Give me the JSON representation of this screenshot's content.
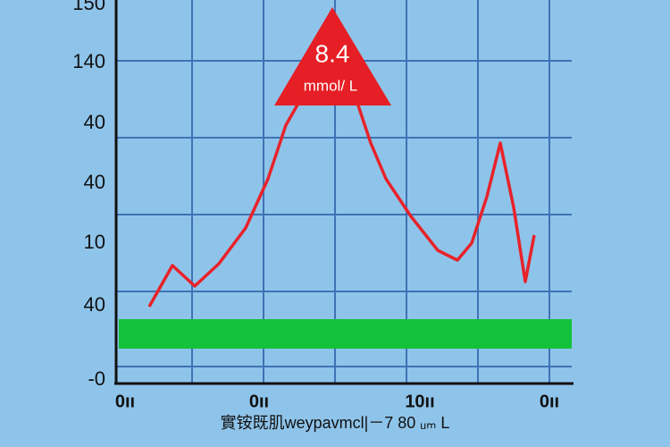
{
  "y_labels": [
    "150",
    "140",
    "40",
    "40",
    "10",
    "40",
    "-0"
  ],
  "x_labels": [
    "0ıı",
    "0ıı",
    "10ıı",
    "0ıı"
  ],
  "annotation": {
    "value": "8.4",
    "unit": "mmol/ L"
  },
  "caption": "實铵既肌weypavmcl|－7 80 ᵤₘ L"
}
